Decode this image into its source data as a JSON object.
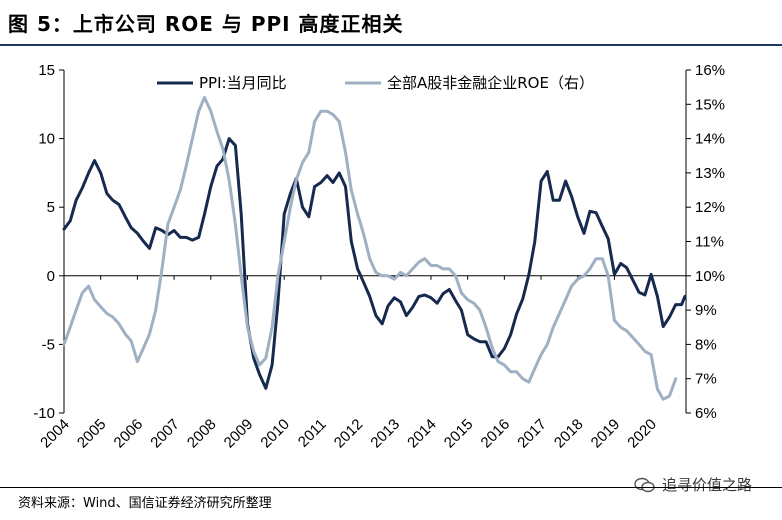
{
  "header": {
    "title": "图 5：上市公司 ROE 与 PPI 高度正相关"
  },
  "footer": {
    "source": "资料来源：Wind、国信证券经济研究所整理",
    "watermark": "追寻价值之路"
  },
  "colors": {
    "ppi": "#16294f",
    "roe": "#9fb0c3",
    "title_rule": "#1f3864"
  },
  "chart_data": {
    "type": "line",
    "title": "",
    "xlabel": "",
    "ylabel_left": "",
    "ylabel_right": "",
    "x_ticks": [
      "2004",
      "2005",
      "2006",
      "2007",
      "2008",
      "2009",
      "2010",
      "2011",
      "2012",
      "2013",
      "2014",
      "2015",
      "2016",
      "2017",
      "2018",
      "2019",
      "2020"
    ],
    "y_left": {
      "min": -10,
      "max": 15,
      "ticks": [
        "15",
        "10",
        "5",
        "0",
        "-5",
        "-10"
      ]
    },
    "y_right": {
      "min": 6,
      "max": 16,
      "ticks": [
        "16%",
        "15%",
        "14%",
        "13%",
        "12%",
        "11%",
        "10%",
        "9%",
        "8%",
        "7%",
        "6%"
      ]
    },
    "grid": false,
    "legend_position": "top",
    "series": [
      {
        "name": "PPI:当月同比",
        "axis": "left",
        "points": [
          [
            2004.0,
            3.4
          ],
          [
            2004.17,
            4.0
          ],
          [
            2004.33,
            5.5
          ],
          [
            2004.5,
            6.4
          ],
          [
            2004.67,
            7.5
          ],
          [
            2004.83,
            8.4
          ],
          [
            2005.0,
            7.5
          ],
          [
            2005.17,
            6.0
          ],
          [
            2005.33,
            5.5
          ],
          [
            2005.5,
            5.2
          ],
          [
            2005.67,
            4.3
          ],
          [
            2005.83,
            3.5
          ],
          [
            2006.0,
            3.1
          ],
          [
            2006.17,
            2.5
          ],
          [
            2006.33,
            2.0
          ],
          [
            2006.5,
            3.5
          ],
          [
            2006.67,
            3.3
          ],
          [
            2006.83,
            3.0
          ],
          [
            2007.0,
            3.3
          ],
          [
            2007.17,
            2.8
          ],
          [
            2007.33,
            2.8
          ],
          [
            2007.5,
            2.6
          ],
          [
            2007.67,
            2.8
          ],
          [
            2007.83,
            4.5
          ],
          [
            2008.0,
            6.5
          ],
          [
            2008.17,
            8.0
          ],
          [
            2008.33,
            8.5
          ],
          [
            2008.5,
            10.0
          ],
          [
            2008.67,
            9.5
          ],
          [
            2008.83,
            4.5
          ],
          [
            2009.0,
            -3.5
          ],
          [
            2009.17,
            -6.0
          ],
          [
            2009.33,
            -7.2
          ],
          [
            2009.5,
            -8.2
          ],
          [
            2009.67,
            -6.5
          ],
          [
            2009.83,
            -2.0
          ],
          [
            2010.0,
            4.5
          ],
          [
            2010.17,
            6.0
          ],
          [
            2010.33,
            7.1
          ],
          [
            2010.5,
            5.0
          ],
          [
            2010.67,
            4.3
          ],
          [
            2010.83,
            6.5
          ],
          [
            2011.0,
            6.8
          ],
          [
            2011.17,
            7.3
          ],
          [
            2011.33,
            6.8
          ],
          [
            2011.5,
            7.5
          ],
          [
            2011.67,
            6.5
          ],
          [
            2011.83,
            2.5
          ],
          [
            2012.0,
            0.5
          ],
          [
            2012.17,
            -0.5
          ],
          [
            2012.33,
            -1.5
          ],
          [
            2012.5,
            -2.9
          ],
          [
            2012.67,
            -3.5
          ],
          [
            2012.83,
            -2.2
          ],
          [
            2013.0,
            -1.6
          ],
          [
            2013.17,
            -1.9
          ],
          [
            2013.33,
            -2.9
          ],
          [
            2013.5,
            -2.3
          ],
          [
            2013.67,
            -1.5
          ],
          [
            2013.83,
            -1.4
          ],
          [
            2014.0,
            -1.6
          ],
          [
            2014.17,
            -2.0
          ],
          [
            2014.33,
            -1.3
          ],
          [
            2014.5,
            -1.0
          ],
          [
            2014.67,
            -1.8
          ],
          [
            2014.83,
            -2.5
          ],
          [
            2015.0,
            -4.3
          ],
          [
            2015.17,
            -4.6
          ],
          [
            2015.33,
            -4.8
          ],
          [
            2015.5,
            -4.8
          ],
          [
            2015.67,
            -5.9
          ],
          [
            2015.83,
            -5.9
          ],
          [
            2016.0,
            -5.3
          ],
          [
            2016.17,
            -4.3
          ],
          [
            2016.33,
            -2.8
          ],
          [
            2016.5,
            -1.7
          ],
          [
            2016.67,
            0.1
          ],
          [
            2016.83,
            2.5
          ],
          [
            2017.0,
            6.9
          ],
          [
            2017.17,
            7.6
          ],
          [
            2017.33,
            5.5
          ],
          [
            2017.5,
            5.5
          ],
          [
            2017.67,
            6.9
          ],
          [
            2017.83,
            5.8
          ],
          [
            2018.0,
            4.3
          ],
          [
            2018.17,
            3.1
          ],
          [
            2018.33,
            4.7
          ],
          [
            2018.5,
            4.6
          ],
          [
            2018.67,
            3.6
          ],
          [
            2018.83,
            2.7
          ],
          [
            2019.0,
            0.1
          ],
          [
            2019.17,
            0.9
          ],
          [
            2019.33,
            0.6
          ],
          [
            2019.5,
            -0.3
          ],
          [
            2019.67,
            -1.2
          ],
          [
            2019.83,
            -1.4
          ],
          [
            2020.0,
            0.1
          ],
          [
            2020.17,
            -1.5
          ],
          [
            2020.33,
            -3.7
          ],
          [
            2020.5,
            -3.0
          ],
          [
            2020.67,
            -2.1
          ],
          [
            2020.83,
            -2.1
          ],
          [
            2020.92,
            -1.5
          ]
        ]
      },
      {
        "name": "全部A股非金融企业ROE（右）",
        "axis": "right",
        "points": [
          [
            2004.0,
            8.0
          ],
          [
            2004.17,
            8.5
          ],
          [
            2004.33,
            9.0
          ],
          [
            2004.5,
            9.5
          ],
          [
            2004.67,
            9.7
          ],
          [
            2004.83,
            9.3
          ],
          [
            2005.0,
            9.1
          ],
          [
            2005.17,
            8.9
          ],
          [
            2005.33,
            8.8
          ],
          [
            2005.5,
            8.6
          ],
          [
            2005.67,
            8.3
          ],
          [
            2005.83,
            8.1
          ],
          [
            2006.0,
            7.5
          ],
          [
            2006.17,
            7.9
          ],
          [
            2006.33,
            8.3
          ],
          [
            2006.5,
            9.0
          ],
          [
            2006.67,
            10.2
          ],
          [
            2006.83,
            11.5
          ],
          [
            2007.0,
            12.0
          ],
          [
            2007.17,
            12.5
          ],
          [
            2007.33,
            13.2
          ],
          [
            2007.5,
            14.0
          ],
          [
            2007.67,
            14.8
          ],
          [
            2007.83,
            15.2
          ],
          [
            2008.0,
            14.8
          ],
          [
            2008.17,
            14.2
          ],
          [
            2008.33,
            13.7
          ],
          [
            2008.5,
            12.8
          ],
          [
            2008.67,
            11.5
          ],
          [
            2008.83,
            10.0
          ],
          [
            2009.0,
            8.5
          ],
          [
            2009.17,
            7.8
          ],
          [
            2009.33,
            7.4
          ],
          [
            2009.5,
            7.6
          ],
          [
            2009.67,
            8.5
          ],
          [
            2009.83,
            10.0
          ],
          [
            2010.0,
            11.0
          ],
          [
            2010.17,
            12.0
          ],
          [
            2010.33,
            12.8
          ],
          [
            2010.5,
            13.3
          ],
          [
            2010.67,
            13.6
          ],
          [
            2010.83,
            14.5
          ],
          [
            2011.0,
            14.8
          ],
          [
            2011.17,
            14.8
          ],
          [
            2011.33,
            14.7
          ],
          [
            2011.5,
            14.5
          ],
          [
            2011.67,
            13.6
          ],
          [
            2011.83,
            12.5
          ],
          [
            2012.0,
            11.8
          ],
          [
            2012.17,
            11.2
          ],
          [
            2012.33,
            10.5
          ],
          [
            2012.5,
            10.1
          ],
          [
            2012.67,
            10.0
          ],
          [
            2012.83,
            10.0
          ],
          [
            2013.0,
            9.9
          ],
          [
            2013.17,
            10.1
          ],
          [
            2013.33,
            10.0
          ],
          [
            2013.5,
            10.2
          ],
          [
            2013.67,
            10.4
          ],
          [
            2013.83,
            10.5
          ],
          [
            2014.0,
            10.3
          ],
          [
            2014.17,
            10.3
          ],
          [
            2014.33,
            10.2
          ],
          [
            2014.5,
            10.2
          ],
          [
            2014.67,
            10.0
          ],
          [
            2014.83,
            9.5
          ],
          [
            2015.0,
            9.3
          ],
          [
            2015.17,
            9.2
          ],
          [
            2015.33,
            9.0
          ],
          [
            2015.5,
            8.5
          ],
          [
            2015.67,
            7.9
          ],
          [
            2015.83,
            7.5
          ],
          [
            2016.0,
            7.4
          ],
          [
            2016.17,
            7.2
          ],
          [
            2016.33,
            7.2
          ],
          [
            2016.5,
            7.0
          ],
          [
            2016.67,
            6.9
          ],
          [
            2016.83,
            7.3
          ],
          [
            2017.0,
            7.7
          ],
          [
            2017.17,
            8.0
          ],
          [
            2017.33,
            8.5
          ],
          [
            2017.5,
            8.9
          ],
          [
            2017.67,
            9.3
          ],
          [
            2017.83,
            9.7
          ],
          [
            2018.0,
            9.9
          ],
          [
            2018.17,
            10.0
          ],
          [
            2018.33,
            10.2
          ],
          [
            2018.5,
            10.5
          ],
          [
            2018.67,
            10.5
          ],
          [
            2018.83,
            10.0
          ],
          [
            2019.0,
            8.7
          ],
          [
            2019.17,
            8.5
          ],
          [
            2019.33,
            8.4
          ],
          [
            2019.5,
            8.2
          ],
          [
            2019.67,
            8.0
          ],
          [
            2019.83,
            7.8
          ],
          [
            2020.0,
            7.7
          ],
          [
            2020.17,
            6.7
          ],
          [
            2020.33,
            6.4
          ],
          [
            2020.5,
            6.5
          ],
          [
            2020.67,
            7.0
          ]
        ]
      }
    ]
  }
}
